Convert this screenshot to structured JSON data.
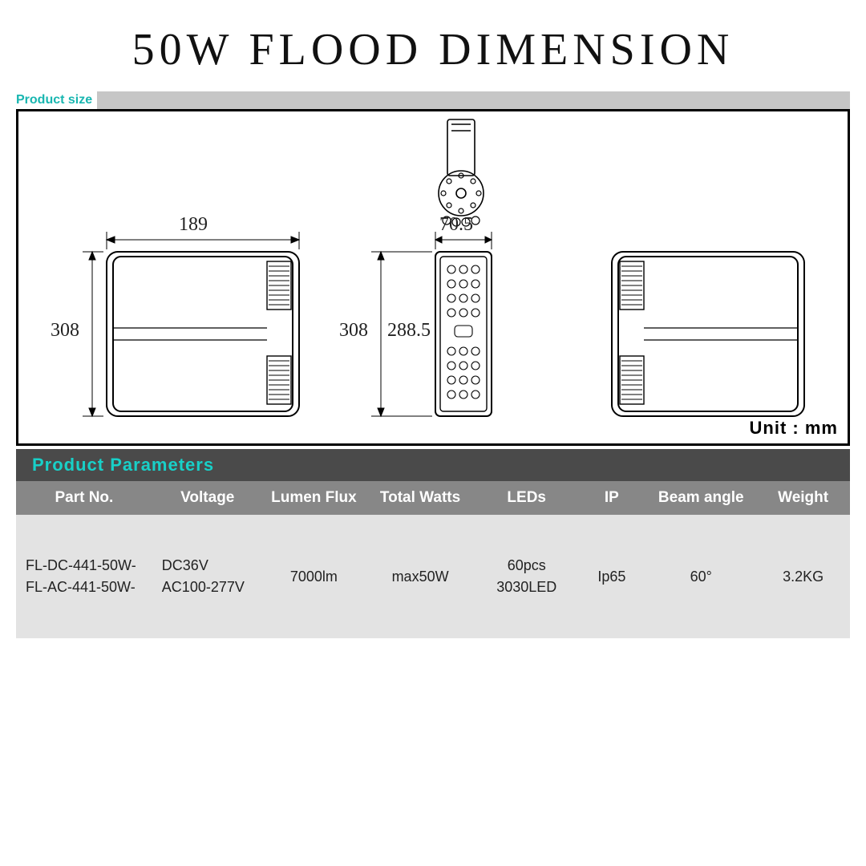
{
  "title": "50W FLOOD DIMENSION",
  "sizeSection": {
    "label": "Product size",
    "unitLabel": "Unit : mm",
    "frame": {
      "borderColor": "#000000",
      "background": "#ffffff"
    },
    "dimensions": {
      "width189": "189",
      "height308_left": "308",
      "height308_mid": "308",
      "width70_5": "70.5",
      "height288_5": "288.5"
    },
    "strokeColor": "#000000",
    "hatchColor": "#000000"
  },
  "paramsSection": {
    "label": "Product  Parameters",
    "headerBg": "#878787",
    "headerText": "#ffffff",
    "rowBg": "#e3e3e3",
    "accent": "#18d0c8",
    "columns": [
      "Part No.",
      "Voltage",
      "Lumen Flux",
      "Total Watts",
      "LEDs",
      "IP",
      "Beam  angle",
      "Weight"
    ],
    "row": {
      "partNo": "FL-DC-441-50W-\nFL-AC-441-50W-",
      "voltage": "DC36V\nAC100-277V",
      "lumen": "7000lm",
      "watts": "max50W",
      "leds": "60pcs\n3030LED",
      "ip": "Ip65",
      "beam": "60°",
      "weight": "3.2KG"
    }
  }
}
